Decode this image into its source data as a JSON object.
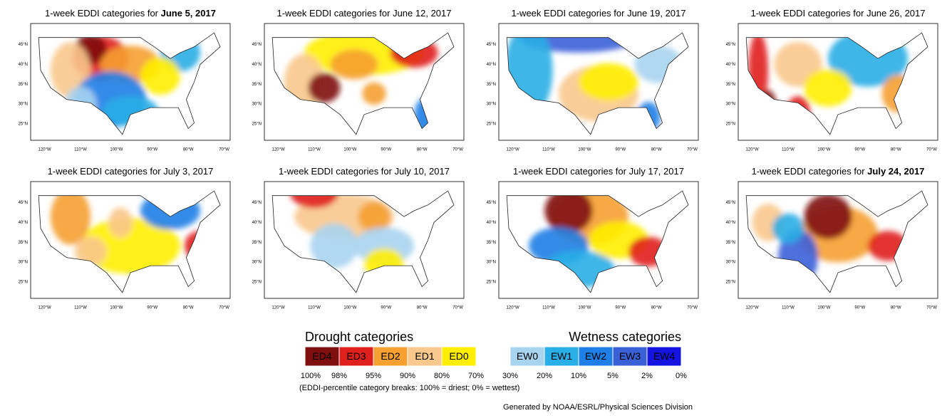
{
  "panels": [
    {
      "title_prefix": "1-week EDDI categories for ",
      "date": "June 5, 2017",
      "bold": true
    },
    {
      "title_prefix": "1-week EDDI categories for ",
      "date": "June 12, 2017",
      "bold": false
    },
    {
      "title_prefix": "1-week EDDI categories for ",
      "date": "June 19, 2017",
      "bold": false
    },
    {
      "title_prefix": "1-week EDDI categories for ",
      "date": "June 26, 2017",
      "bold": false
    },
    {
      "title_prefix": "1-week EDDI categories for ",
      "date": "July 3, 2017",
      "bold": false
    },
    {
      "title_prefix": "1-week EDDI categories for ",
      "date": "July 10, 2017",
      "bold": false
    },
    {
      "title_prefix": "1-week EDDI categories for ",
      "date": "July 17, 2017",
      "bold": false
    },
    {
      "title_prefix": "1-week EDDI categories for ",
      "date": "July 24, 2017",
      "bold": true
    }
  ],
  "lat_labels": [
    "45°N",
    "40°N",
    "35°N",
    "30°N",
    "25°N"
  ],
  "lon_labels": [
    "120°W",
    "110°W",
    "100°W",
    "90°W",
    "80°W",
    "70°W"
  ],
  "legend": {
    "drought_heading": "Drought categories",
    "wetness_heading": "Wetness categories",
    "categories": [
      {
        "label": "ED4",
        "color": "#7f0f0f"
      },
      {
        "label": "ED3",
        "color": "#e0201c"
      },
      {
        "label": "ED2",
        "color": "#f5a030"
      },
      {
        "label": "ED1",
        "color": "#f8c88c"
      },
      {
        "label": "ED0",
        "color": "#ffee00"
      },
      {
        "label": null,
        "color": "#ffffff"
      },
      {
        "label": "EW0",
        "color": "#a8d4f0"
      },
      {
        "label": "EW1",
        "color": "#2aaee6"
      },
      {
        "label": "EW2",
        "color": "#1e80e6"
      },
      {
        "label": "EW3",
        "color": "#3a60d8"
      },
      {
        "label": "EW4",
        "color": "#1414e0"
      }
    ],
    "breaks": [
      "100%",
      "98%",
      "95%",
      "90%",
      "80%",
      "70%",
      "30%",
      "20%",
      "10%",
      "5%",
      "2%",
      "0%"
    ],
    "note": "(EDDI-percentile category breaks: 100% = driest; 0% = wettest)"
  },
  "credit": "Generated by NOAA/ESRL/Physical Sciences Division"
}
